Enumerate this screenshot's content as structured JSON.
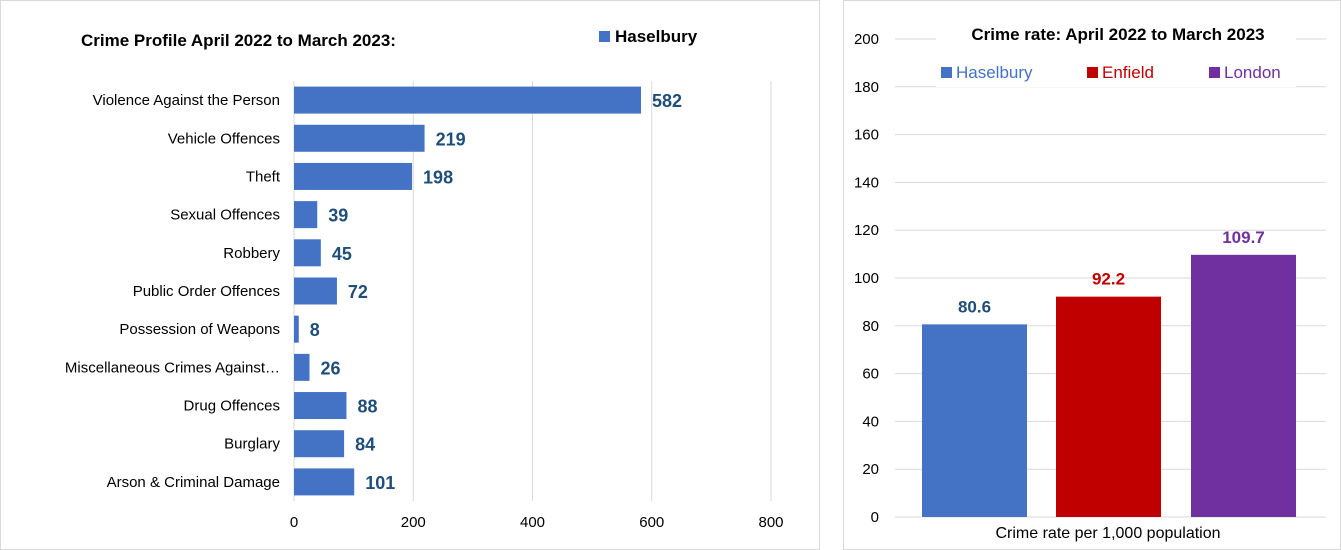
{
  "chart_data": [
    {
      "type": "bar",
      "orientation": "horizontal",
      "title": "Crime Profile April 2022 to March 2023:",
      "legend": [
        "Haselbury"
      ],
      "legend_position": "top-right",
      "categories": [
        "Violence Against the Person",
        "Vehicle Offences",
        "Theft",
        "Sexual Offences",
        "Robbery",
        "Public Order Offences",
        "Possession of Weapons",
        "Miscellaneous Crimes Against…",
        "Drug Offences",
        "Burglary",
        "Arson & Criminal Damage"
      ],
      "series": [
        {
          "name": "Haselbury",
          "values": [
            582,
            219,
            198,
            39,
            45,
            72,
            8,
            26,
            88,
            84,
            101
          ]
        }
      ],
      "data_labels": [
        "582",
        "219",
        "198",
        "39",
        "45",
        "72",
        "8",
        "26",
        "88",
        "84",
        "101"
      ],
      "xlim": [
        0,
        800
      ],
      "x_ticks": [
        0,
        200,
        400,
        600,
        800
      ],
      "x_tick_labels": [
        "0",
        "200",
        "400",
        "600",
        "800"
      ],
      "xlabel": "",
      "ylabel": "",
      "grid": "vertical",
      "colors": {
        "bar": "#4472c4",
        "label": "#1f4e79",
        "grid": "#d9d9d9"
      }
    },
    {
      "type": "bar",
      "title": "Crime rate: April 2022 to March 2023",
      "legend": [
        "Haselbury",
        "Enfield",
        "London"
      ],
      "legend_position": "top",
      "categories": [
        "Crime rate per 1,000 population"
      ],
      "series": [
        {
          "name": "Haselbury",
          "values": [
            80.6
          ],
          "color": "#4472c4",
          "label_color": "#1f4e79"
        },
        {
          "name": "Enfield",
          "values": [
            92.2
          ],
          "color": "#c00000",
          "label_color": "#c00000"
        },
        {
          "name": "London",
          "values": [
            109.7
          ],
          "color": "#7030a0",
          "label_color": "#7030a0"
        }
      ],
      "data_labels": [
        "80.6",
        "92.2",
        "109.7"
      ],
      "ylim": [
        0,
        200
      ],
      "y_ticks": [
        0,
        20,
        40,
        60,
        80,
        100,
        120,
        140,
        160,
        180,
        200
      ],
      "y_tick_labels": [
        "0",
        "20",
        "40",
        "60",
        "80",
        "100",
        "120",
        "140",
        "160",
        "180",
        "200"
      ],
      "xlabel": "Crime rate per 1,000 population",
      "ylabel": "",
      "grid": "horizontal",
      "colors": {
        "grid": "#d9d9d9"
      }
    }
  ]
}
